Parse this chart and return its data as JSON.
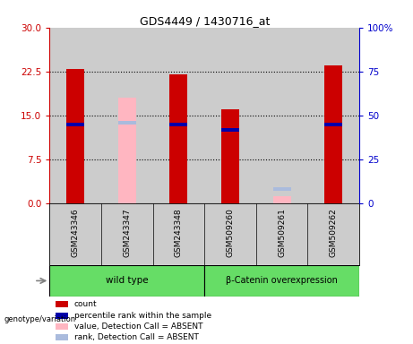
{
  "title": "GDS4449 / 1430716_at",
  "samples": [
    "GSM243346",
    "GSM243347",
    "GSM243348",
    "GSM509260",
    "GSM509261",
    "GSM509262"
  ],
  "group_wild_name": "wild type",
  "group_beta_name": "β-Catenin overexpression",
  "group_color": "#66DD66",
  "red_bars": [
    23.0,
    null,
    22.0,
    16.0,
    null,
    23.5
  ],
  "blue_bars": [
    13.5,
    null,
    13.5,
    12.5,
    null,
    13.5
  ],
  "pink_bars": [
    null,
    18.0,
    null,
    null,
    1.2,
    null
  ],
  "light_blue_bars": [
    null,
    13.8,
    null,
    null,
    2.5,
    null
  ],
  "ylim": [
    0,
    30
  ],
  "yticks_left": [
    0,
    7.5,
    15,
    22.5,
    30
  ],
  "yticks_right_labels": [
    "0",
    "25",
    "50",
    "75",
    "100%"
  ],
  "left_tick_color": "#CC0000",
  "right_tick_color": "#0000CC",
  "sample_bg_color": "#CCCCCC",
  "plot_bg_color": "#FFFFFF",
  "bar_color_red": "#CC0000",
  "bar_color_blue": "#0000AA",
  "bar_color_pink": "#FFB6C1",
  "bar_color_lightblue": "#AABBDD",
  "legend_items": [
    {
      "color": "#CC0000",
      "label": "count"
    },
    {
      "color": "#0000AA",
      "label": "percentile rank within the sample"
    },
    {
      "color": "#FFB6C1",
      "label": "value, Detection Call = ABSENT"
    },
    {
      "color": "#AABBDD",
      "label": "rank, Detection Call = ABSENT"
    }
  ],
  "bar_width": 0.35,
  "blue_bar_height": 0.6
}
